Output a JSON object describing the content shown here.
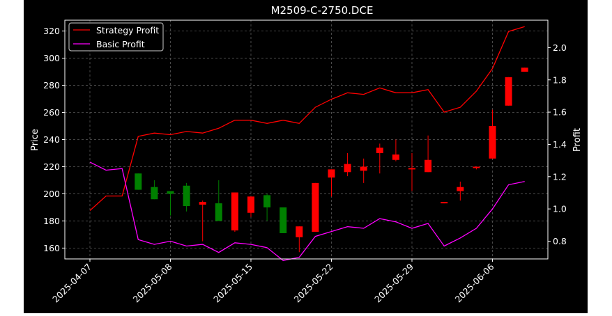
{
  "chart_data": {
    "type": "candlestick",
    "title": "M2509-C-2750.DCE",
    "ylabel": "Price",
    "ylabel_right": "Profit",
    "ylim": [
      152,
      328
    ],
    "ylim_right": [
      0.69,
      2.17
    ],
    "y_ticks": [
      160,
      180,
      200,
      220,
      240,
      260,
      280,
      300,
      320
    ],
    "y_ticks_right": [
      0.8,
      1.0,
      1.2,
      1.4,
      1.6,
      1.8,
      2.0
    ],
    "x_tick_labels": [
      {
        "index": 0,
        "label": "2025-04-07"
      },
      {
        "index": 5,
        "label": "2025-05-08"
      },
      {
        "index": 10,
        "label": "2025-05-15"
      },
      {
        "index": 15,
        "label": "2025-05-22"
      },
      {
        "index": 20,
        "label": "2025-05-29"
      },
      {
        "index": 25,
        "label": "2025-06-06"
      }
    ],
    "grid": true,
    "legend_position": "top-left",
    "series": [
      {
        "name": "Strategy Profit",
        "axis": "right",
        "color": "#ff0000",
        "values": [
          0.99,
          1.08,
          1.08,
          1.45,
          1.47,
          1.46,
          1.48,
          1.47,
          1.5,
          1.55,
          1.55,
          1.53,
          1.55,
          1.53,
          1.63,
          1.68,
          1.72,
          1.71,
          1.75,
          1.72,
          1.72,
          1.74,
          1.6,
          1.63,
          1.73,
          1.87,
          2.1,
          2.13
        ]
      },
      {
        "name": "Basic Profit",
        "axis": "right",
        "color": "#ff00ff",
        "values": [
          1.29,
          1.24,
          1.25,
          0.81,
          0.78,
          0.8,
          0.77,
          0.78,
          0.73,
          0.79,
          0.78,
          0.76,
          0.68,
          0.7,
          0.83,
          0.86,
          0.89,
          0.88,
          0.94,
          0.92,
          0.88,
          0.91,
          0.77,
          0.82,
          0.88,
          1.0,
          1.15,
          1.17
        ]
      }
    ],
    "candles": [
      {
        "i": 3,
        "open": 215,
        "close": 203,
        "high": 215,
        "low": 203
      },
      {
        "i": 4,
        "open": 205,
        "close": 196,
        "high": 210,
        "low": 196
      },
      {
        "i": 5,
        "open": 202,
        "close": 200,
        "high": 202,
        "low": 184
      },
      {
        "i": 6,
        "open": 206,
        "close": 191,
        "high": 208,
        "low": 187
      },
      {
        "i": 7,
        "open": 192,
        "close": 194,
        "high": 195,
        "low": 165
      },
      {
        "i": 8,
        "open": 193,
        "close": 180,
        "high": 210,
        "low": 180
      },
      {
        "i": 9,
        "open": 173,
        "close": 201,
        "high": 201,
        "low": 172
      },
      {
        "i": 10,
        "open": 186,
        "close": 198,
        "high": 198,
        "low": 183
      },
      {
        "i": 11,
        "open": 199,
        "close": 190,
        "high": 200,
        "low": 180
      },
      {
        "i": 12,
        "open": 190,
        "close": 171,
        "high": 190,
        "low": 171
      },
      {
        "i": 13,
        "open": 168,
        "close": 176,
        "high": 176,
        "low": 157
      },
      {
        "i": 14,
        "open": 172,
        "close": 208,
        "high": 208,
        "low": 172
      },
      {
        "i": 15,
        "open": 212,
        "close": 218,
        "high": 218,
        "low": 198
      },
      {
        "i": 16,
        "open": 216,
        "close": 222,
        "high": 230,
        "low": 213
      },
      {
        "i": 17,
        "open": 217,
        "close": 220,
        "high": 226,
        "low": 208
      },
      {
        "i": 18,
        "open": 230,
        "close": 234,
        "high": 237,
        "low": 215
      },
      {
        "i": 19,
        "open": 225,
        "close": 229,
        "high": 240,
        "low": 224
      },
      {
        "i": 20,
        "open": 218,
        "close": 219,
        "high": 230,
        "low": 202
      },
      {
        "i": 21,
        "open": 216,
        "close": 225,
        "high": 243,
        "low": 216
      },
      {
        "i": 22,
        "open": 193,
        "close": 194,
        "high": 194,
        "low": 193
      },
      {
        "i": 23,
        "open": 202,
        "close": 205,
        "high": 209,
        "low": 195
      },
      {
        "i": 24,
        "open": 219,
        "close": 220,
        "high": 220,
        "low": 218
      },
      {
        "i": 25,
        "open": 226,
        "close": 250,
        "high": 262,
        "low": 226
      },
      {
        "i": 26,
        "open": 265,
        "close": 286,
        "high": 286,
        "low": 265
      },
      {
        "i": 27,
        "open": 290,
        "close": 293,
        "high": 293,
        "low": 290
      }
    ],
    "up_color": "#ff0000",
    "down_color": "#008000"
  }
}
